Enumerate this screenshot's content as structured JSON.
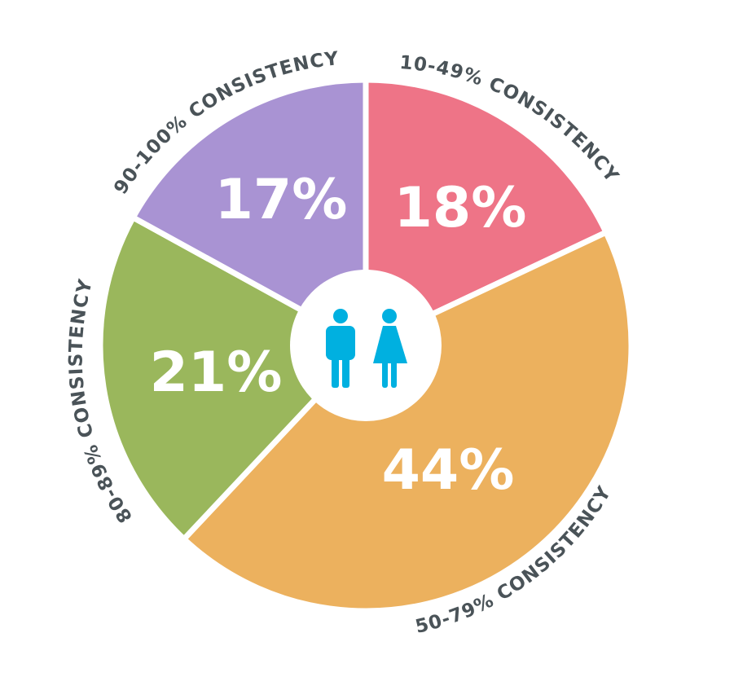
{
  "chart_data": {
    "type": "pie",
    "title": "",
    "center_icon": "male-female-people-icon",
    "categories": [
      "10-49% CONSISTENCY",
      "50-79% CONSISTENCY",
      "80-89% CONSISTENCY",
      "90-100% CONSISTENCY"
    ],
    "values": [
      18,
      44,
      21,
      17
    ],
    "value_labels": [
      "18%",
      "44%",
      "21%",
      "17%"
    ],
    "colors": [
      "#ee7487",
      "#ecb15e",
      "#9ab75c",
      "#a993d3"
    ],
    "label_color": "#4a5358",
    "icon_color": "#00b0e0",
    "donut_hole": true,
    "start_angle_deg": 0,
    "direction": "clockwise"
  },
  "slices": [
    {
      "label": "10-49% CONSISTENCY",
      "value": "18%"
    },
    {
      "label": "50-79% CONSISTENCY",
      "value": "44%"
    },
    {
      "label": "80-89% CONSISTENCY",
      "value": "21%"
    },
    {
      "label": "90-100% CONSISTENCY",
      "value": "17%"
    }
  ]
}
